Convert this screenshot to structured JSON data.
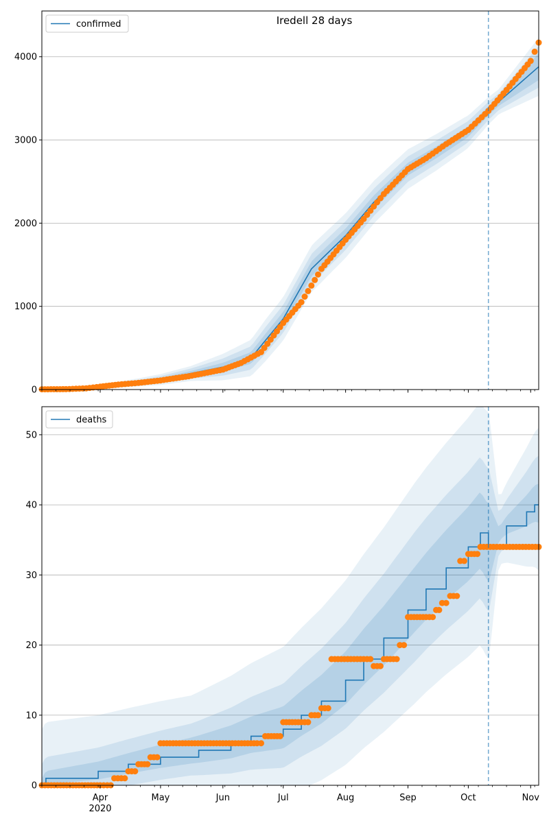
{
  "chart_data": [
    {
      "type": "line",
      "title": "Iredell 28 days",
      "legend": {
        "entries": [
          "confirmed"
        ],
        "placement": "upper-left"
      },
      "ylim": [
        0,
        4550
      ],
      "yticks": [
        0,
        1000,
        2000,
        3000,
        4000
      ],
      "xlim": [
        "2020-03-03",
        "2020-11-05"
      ],
      "xticks": [
        {
          "date": "2020-04-01",
          "label": "Apr",
          "sublabel": "2020"
        },
        {
          "date": "2020-05-01",
          "label": "May",
          "sublabel": ""
        },
        {
          "date": "2020-06-01",
          "label": "Jun",
          "sublabel": ""
        },
        {
          "date": "2020-07-01",
          "label": "Jul",
          "sublabel": ""
        },
        {
          "date": "2020-08-01",
          "label": "Aug",
          "sublabel": ""
        },
        {
          "date": "2020-09-01",
          "label": "Sep",
          "sublabel": ""
        },
        {
          "date": "2020-10-01",
          "label": "Oct",
          "sublabel": ""
        },
        {
          "date": "2020-11-01",
          "label": "Nov",
          "sublabel": ""
        }
      ],
      "grid": "y",
      "forecast_start": "2020-10-11",
      "series": [
        {
          "name": "confirmed",
          "kind": "model-line",
          "color": "#1f77b4",
          "points": [
            [
              "2020-03-03",
              5
            ],
            [
              "2020-04-01",
              30
            ],
            [
              "2020-05-01",
              120
            ],
            [
              "2020-06-01",
              270
            ],
            [
              "2020-06-15",
              380
            ],
            [
              "2020-07-01",
              850
            ],
            [
              "2020-07-15",
              1450
            ],
            [
              "2020-08-01",
              1850
            ],
            [
              "2020-08-15",
              2250
            ],
            [
              "2020-09-01",
              2650
            ],
            [
              "2020-09-15",
              2850
            ],
            [
              "2020-10-01",
              3100
            ],
            [
              "2020-10-11",
              3350
            ],
            [
              "2020-11-05",
              3880
            ]
          ]
        },
        {
          "kind": "observed-points",
          "color": "#ff7f0e",
          "points": [
            [
              "2020-03-03",
              3
            ],
            [
              "2020-03-15",
              5
            ],
            [
              "2020-03-25",
              15
            ],
            [
              "2020-04-01",
              35
            ],
            [
              "2020-04-10",
              60
            ],
            [
              "2020-04-20",
              80
            ],
            [
              "2020-05-01",
              110
            ],
            [
              "2020-05-15",
              160
            ],
            [
              "2020-06-01",
              240
            ],
            [
              "2020-06-10",
              320
            ],
            [
              "2020-06-20",
              450
            ],
            [
              "2020-07-01",
              800
            ],
            [
              "2020-07-10",
              1050
            ],
            [
              "2020-07-20",
              1450
            ],
            [
              "2020-08-01",
              1800
            ],
            [
              "2020-08-10",
              2050
            ],
            [
              "2020-08-20",
              2350
            ],
            [
              "2020-09-01",
              2650
            ],
            [
              "2020-09-10",
              2780
            ],
            [
              "2020-09-20",
              2950
            ],
            [
              "2020-10-01",
              3120
            ],
            [
              "2020-10-11",
              3350
            ],
            [
              "2020-10-20",
              3600
            ],
            [
              "2020-11-01",
              3950
            ],
            [
              "2020-11-05",
              4170
            ]
          ]
        }
      ],
      "bands": {
        "color": "#1f77b4",
        "opacities": [
          0.1,
          0.12,
          0.15
        ],
        "spreads": [
          [
            [
              0.0,
              0.0
            ],
            [
              0.1,
              20
            ],
            [
              0.2,
              50
            ],
            [
              0.3,
              90
            ],
            [
              0.45,
              250
            ],
            [
              0.55,
              280
            ],
            [
              0.7,
              250
            ],
            [
              0.85,
              200
            ],
            [
              0.92,
              150
            ],
            [
              1.0,
              350
            ]
          ],
          [
            [
              0.0,
              0.0
            ],
            [
              0.1,
              12
            ],
            [
              0.2,
              30
            ],
            [
              0.3,
              60
            ],
            [
              0.45,
              160
            ],
            [
              0.55,
              180
            ],
            [
              0.7,
              160
            ],
            [
              0.85,
              130
            ],
            [
              0.92,
              100
            ],
            [
              1.0,
              250
            ]
          ],
          [
            [
              0.0,
              0.0
            ],
            [
              0.1,
              6
            ],
            [
              0.2,
              15
            ],
            [
              0.3,
              30
            ],
            [
              0.45,
              80
            ],
            [
              0.55,
              90
            ],
            [
              0.7,
              80
            ],
            [
              0.85,
              65
            ],
            [
              0.92,
              50
            ],
            [
              1.0,
              160
            ]
          ]
        ]
      }
    },
    {
      "type": "line",
      "title": "",
      "legend": {
        "entries": [
          "deaths"
        ],
        "placement": "upper-left"
      },
      "ylim": [
        0,
        54
      ],
      "yticks": [
        0,
        10,
        20,
        30,
        40,
        50
      ],
      "xlim": [
        "2020-03-03",
        "2020-11-05"
      ],
      "xticks": [
        {
          "date": "2020-04-01",
          "label": "Apr",
          "sublabel": "2020"
        },
        {
          "date": "2020-05-01",
          "label": "May",
          "sublabel": ""
        },
        {
          "date": "2020-06-01",
          "label": "Jun",
          "sublabel": ""
        },
        {
          "date": "2020-07-01",
          "label": "Jul",
          "sublabel": ""
        },
        {
          "date": "2020-08-01",
          "label": "Aug",
          "sublabel": ""
        },
        {
          "date": "2020-09-01",
          "label": "Sep",
          "sublabel": ""
        },
        {
          "date": "2020-10-01",
          "label": "Oct",
          "sublabel": ""
        },
        {
          "date": "2020-11-01",
          "label": "Nov",
          "sublabel": ""
        }
      ],
      "grid": "y",
      "forecast_start": "2020-10-11",
      "series": [
        {
          "name": "deaths",
          "kind": "model-step",
          "color": "#1f77b4",
          "points": [
            [
              "2020-03-03",
              0
            ],
            [
              "2020-03-05",
              1
            ],
            [
              "2020-03-31",
              2
            ],
            [
              "2020-04-15",
              3
            ],
            [
              "2020-05-01",
              4
            ],
            [
              "2020-05-20",
              5
            ],
            [
              "2020-06-05",
              6
            ],
            [
              "2020-06-15",
              7
            ],
            [
              "2020-07-01",
              8
            ],
            [
              "2020-07-10",
              10
            ],
            [
              "2020-07-20",
              12
            ],
            [
              "2020-08-01",
              15
            ],
            [
              "2020-08-10",
              18
            ],
            [
              "2020-08-20",
              21
            ],
            [
              "2020-09-01",
              25
            ],
            [
              "2020-09-10",
              28
            ],
            [
              "2020-09-20",
              31
            ],
            [
              "2020-10-01",
              34
            ],
            [
              "2020-10-07",
              36
            ],
            [
              "2020-10-11",
              34
            ],
            [
              "2020-10-20",
              37
            ],
            [
              "2020-10-30",
              39
            ],
            [
              "2020-11-03",
              40
            ],
            [
              "2020-11-05",
              40
            ]
          ]
        },
        {
          "kind": "observed-points",
          "color": "#ff7f0e",
          "points": [
            [
              "2020-03-03",
              0
            ],
            [
              "2020-03-20",
              0
            ],
            [
              "2020-04-01",
              0
            ],
            [
              "2020-04-08",
              1
            ],
            [
              "2020-04-15",
              2
            ],
            [
              "2020-04-20",
              3
            ],
            [
              "2020-04-26",
              4
            ],
            [
              "2020-05-01",
              6
            ],
            [
              "2020-05-15",
              6
            ],
            [
              "2020-06-01",
              6
            ],
            [
              "2020-06-18",
              6
            ],
            [
              "2020-06-22",
              7
            ],
            [
              "2020-07-01",
              9
            ],
            [
              "2020-07-10",
              9
            ],
            [
              "2020-07-15",
              10
            ],
            [
              "2020-07-20",
              11
            ],
            [
              "2020-07-25",
              18
            ],
            [
              "2020-08-10",
              18
            ],
            [
              "2020-08-15",
              17
            ],
            [
              "2020-08-20",
              18
            ],
            [
              "2020-08-28",
              20
            ],
            [
              "2020-09-01",
              24
            ],
            [
              "2020-09-10",
              24
            ],
            [
              "2020-09-15",
              25
            ],
            [
              "2020-09-18",
              26
            ],
            [
              "2020-09-22",
              27
            ],
            [
              "2020-09-27",
              32
            ],
            [
              "2020-10-01",
              33
            ],
            [
              "2020-10-07",
              34
            ],
            [
              "2020-10-20",
              34
            ],
            [
              "2020-11-05",
              34
            ]
          ]
        }
      ],
      "bands": {
        "color": "#1f77b4",
        "opacities": [
          0.1,
          0.12,
          0.15
        ],
        "spreads": [
          [
            [
              0.0,
              8
            ],
            [
              0.3,
              8
            ],
            [
              0.45,
              11
            ],
            [
              0.6,
              14
            ],
            [
              0.75,
              17
            ],
            [
              0.9,
              19
            ],
            [
              0.92,
              5
            ],
            [
              1.0,
              11
            ]
          ],
          [
            [
              0.0,
              3
            ],
            [
              0.3,
              4
            ],
            [
              0.45,
              6
            ],
            [
              0.6,
              8
            ],
            [
              0.75,
              10
            ],
            [
              0.9,
              11
            ],
            [
              0.92,
              3
            ],
            [
              1.0,
              7
            ]
          ],
          [
            [
              0.0,
              1
            ],
            [
              0.3,
              2
            ],
            [
              0.45,
              3
            ],
            [
              0.6,
              4
            ],
            [
              0.75,
              5
            ],
            [
              0.9,
              6
            ],
            [
              0.92,
              1
            ],
            [
              1.0,
              3
            ]
          ]
        ]
      }
    }
  ]
}
